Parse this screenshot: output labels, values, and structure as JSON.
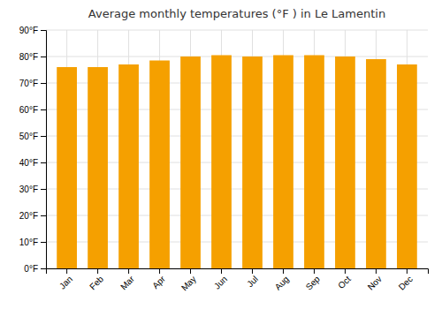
{
  "chart_data": {
    "type": "bar",
    "title": "Average monthly temperatures (°F ) in Le Lamentin",
    "categories": [
      "Jan",
      "Feb",
      "Mar",
      "Apr",
      "May",
      "Jun",
      "Jul",
      "Aug",
      "Sep",
      "Oct",
      "Nov",
      "Dec"
    ],
    "values": [
      76,
      76,
      77,
      78.5,
      80,
      80.5,
      80,
      80.5,
      80.5,
      80,
      79,
      77
    ],
    "color": "#F5A000",
    "ylim": [
      0,
      90
    ],
    "yticks": [
      {
        "value": 0,
        "label": "0°F"
      },
      {
        "value": 10,
        "label": "10°F"
      },
      {
        "value": 20,
        "label": "20°F"
      },
      {
        "value": 30,
        "label": "30°F"
      },
      {
        "value": 40,
        "label": "40°F"
      },
      {
        "value": 50,
        "label": "50°F"
      },
      {
        "value": 60,
        "label": "60°F"
      },
      {
        "value": 70,
        "label": "70°F"
      },
      {
        "value": 80,
        "label": "80°F"
      },
      {
        "value": 90,
        "label": "90°F"
      }
    ],
    "grid": true
  }
}
